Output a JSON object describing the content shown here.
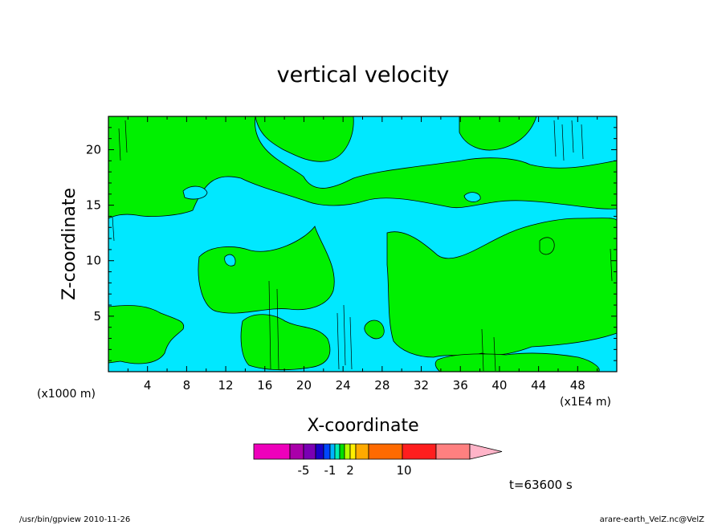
{
  "chart_data": {
    "type": "heatmap",
    "title": "vertical velocity",
    "xlabel": "X-coordinate",
    "ylabel": "Z-coordinate",
    "x_unit_left": "(x1000 m)",
    "x_unit_right": "(x1E4 m)",
    "xlim": [
      0,
      52
    ],
    "ylim": [
      0,
      23
    ],
    "x_ticks": [
      "4",
      "8",
      "12",
      "16",
      "20",
      "24",
      "28",
      "32",
      "36",
      "40",
      "44",
      "48"
    ],
    "x_tick_values": [
      4,
      8,
      12,
      16,
      20,
      24,
      28,
      32,
      36,
      40,
      44,
      48
    ],
    "y_ticks": [
      "5",
      "10",
      "15",
      "20"
    ],
    "y_tick_values": [
      5,
      10,
      15,
      20
    ],
    "field_colors": {
      "negative": "#00e8ff",
      "positive": "#00f000"
    },
    "colorbar": {
      "colors": [
        "#ee00bb",
        "#aa00aa",
        "#7a00b4",
        "#1a00c8",
        "#0046ff",
        "#00b4ff",
        "#00f0b4",
        "#00e000",
        "#b4ff00",
        "#ffee00",
        "#ffaa00",
        "#ff6a00",
        "#ff1e1e",
        "#ff8080"
      ],
      "tick_labels": [
        "-5",
        "-1",
        "2",
        "10"
      ],
      "triangle_color": "#ffb4c8"
    },
    "time_label": "t=63600 s"
  },
  "footer": {
    "left": "/usr/bin/gpview  2010-11-26",
    "right": "arare-earth_VelZ.nc@VelZ"
  }
}
